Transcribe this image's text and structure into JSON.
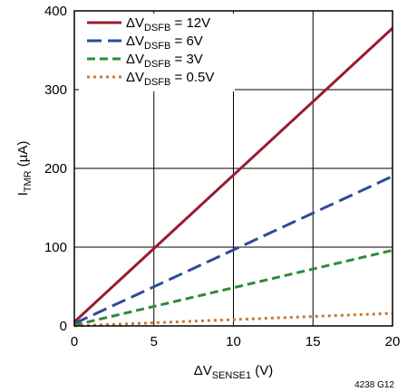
{
  "chart_data": {
    "type": "line",
    "x_axis": {
      "label_main": "ΔV",
      "label_sub": "SENSE1",
      "label_unit": " (V)",
      "range": [
        0,
        20
      ],
      "ticks": [
        0,
        5,
        10,
        15,
        20
      ],
      "tick_labels": [
        "0",
        "5",
        "10",
        "15",
        "20"
      ]
    },
    "y_axis": {
      "label_main": "I",
      "label_sub": "TMR",
      "label_unit": " (µA)",
      "range": [
        0,
        400
      ],
      "ticks": [
        0,
        100,
        200,
        300,
        400
      ],
      "tick_labels": [
        "0",
        "100",
        "200",
        "300",
        "400"
      ]
    },
    "grid": true,
    "legend_position": "top-left",
    "series": [
      {
        "label_main": "ΔV",
        "label_sub": "DSFB",
        "label_tail": " = 12V",
        "color": "#9b1b30",
        "dash": "solid",
        "points": [
          [
            0,
            5
          ],
          [
            20,
            378
          ]
        ]
      },
      {
        "label_main": "ΔV",
        "label_sub": "DSFB",
        "label_tail": " = 6V",
        "color": "#2f4a9a",
        "dash": "long-dash",
        "points": [
          [
            0,
            3
          ],
          [
            20,
            190
          ]
        ]
      },
      {
        "label_main": "ΔV",
        "label_sub": "DSFB",
        "label_tail": " = 3V",
        "color": "#2e8b3a",
        "dash": "dash",
        "points": [
          [
            0,
            1
          ],
          [
            20,
            96
          ]
        ]
      },
      {
        "label_main": "ΔV",
        "label_sub": "DSFB",
        "label_tail": " = 0.5V",
        "color": "#c87a33",
        "dash": "dot",
        "points": [
          [
            0,
            0
          ],
          [
            20,
            16
          ]
        ]
      }
    ],
    "note": "4238 G12"
  }
}
